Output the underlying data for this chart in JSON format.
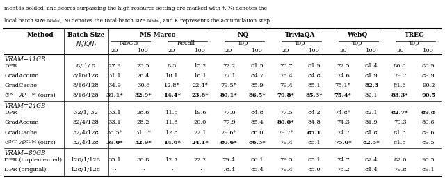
{
  "caption_text": "ment is bolded, and scores surpassing the high resource setting are marked with †. Nₗ denotes the\nlocal batch size Nₗₒₕₐₗ, Nₜ denotes the total batch size Nₜₒₜₐₗ, and K represents the accumulation step.",
  "header_row1": [
    "Method",
    "Batch Size",
    "MS Marco",
    "",
    "",
    "",
    "NQ",
    "",
    "TriviaQA",
    "",
    "WebQ",
    "",
    "TREC",
    ""
  ],
  "header_row2": [
    "",
    "N_t/K/N_l",
    "NDCG",
    "",
    "Recall",
    "",
    "Top",
    "",
    "Top",
    "",
    "Top",
    "",
    "Top",
    ""
  ],
  "header_row3": [
    "",
    "",
    "20",
    "100",
    "20",
    "100",
    "20",
    "100",
    "20",
    "100",
    "20",
    "100",
    "20",
    "100"
  ],
  "sections": [
    {
      "label": "VRAM=11GB",
      "rows": [
        {
          "method": "DPR",
          "batch": "8/ 1/ 8",
          "data": [
            "27.9",
            "23.5",
            "8.3",
            "15.2",
            "72.2",
            "81.5",
            "73.7",
            "81.9",
            "72.5",
            "81.4",
            "80.8",
            "88.9"
          ],
          "bold": [
            false,
            false,
            false,
            false,
            false,
            false,
            false,
            false,
            false,
            false,
            false,
            false
          ]
        },
        {
          "method": "GradAccum",
          "batch": "8/16/128",
          "data": [
            "31.1",
            "26.4",
            "10.1",
            "18.1",
            "77.1",
            "84.7",
            "78.4",
            "84.8",
            "74.6",
            "81.9",
            "79.7",
            "89.9"
          ],
          "bold": [
            false,
            false,
            false,
            false,
            false,
            false,
            false,
            false,
            false,
            false,
            false,
            false
          ]
        },
        {
          "method": "GradCache",
          "batch": "8/16/128",
          "data": [
            "34.9",
            "30.6",
            "12.8*",
            "22.4*",
            "79.5*",
            "85.9",
            "79.4",
            "85.1",
            "75.1*",
            "82.3",
            "81.6",
            "90.2"
          ],
          "bold": [
            false,
            false,
            false,
            false,
            false,
            false,
            false,
            false,
            false,
            true,
            false,
            false
          ]
        },
        {
          "method": "ContAccum (ours)",
          "batch": "8/16/128",
          "data": [
            "39.1*",
            "32.9*",
            "14.4*",
            "23.8*",
            "80.1*",
            "86.5*",
            "79.8*",
            "85.3*",
            "75.4*",
            "82.1",
            "83.3*",
            "90.5"
          ],
          "bold": [
            true,
            true,
            true,
            true,
            true,
            true,
            true,
            true,
            true,
            false,
            true,
            true
          ]
        }
      ]
    },
    {
      "label": "VRAM=24GB",
      "rows": [
        {
          "method": "DPR",
          "batch": "32/1/ 32",
          "data": [
            "33.1",
            "28.6",
            "11.5",
            "19.6",
            "77.0",
            "84.8",
            "77.5",
            "84.2",
            "74.8*",
            "82.1",
            "82.7*",
            "89.8"
          ],
          "bold": [
            false,
            false,
            false,
            false,
            false,
            false,
            false,
            false,
            false,
            false,
            true,
            true
          ]
        },
        {
          "method": "GradAccum",
          "batch": "32/4/128",
          "data": [
            "33.1",
            "28.2",
            "11.8",
            "20.0",
            "77.9",
            "85.4",
            "80.0*",
            "84.8",
            "74.3",
            "81.9",
            "79.3",
            "89.6"
          ],
          "bold": [
            false,
            false,
            false,
            false,
            false,
            false,
            true,
            false,
            false,
            false,
            false,
            false
          ]
        },
        {
          "method": "GradCache",
          "batch": "32/4/128",
          "data": [
            "35.5*",
            "31.0*",
            "12.8",
            "22.1",
            "79.6*",
            "86.0",
            "79.7*",
            "85.1",
            "74.7",
            "81.8",
            "81.3",
            "89.6"
          ],
          "bold": [
            false,
            false,
            false,
            false,
            false,
            false,
            false,
            true,
            false,
            false,
            false,
            false
          ]
        },
        {
          "method": "ContAccum (ours)",
          "batch": "32/4/128",
          "data": [
            "39.0*",
            "32.9*",
            "14.6*",
            "24.1*",
            "80.6*",
            "86.3*",
            "79.4",
            "85.1",
            "75.0*",
            "82.5*",
            "81.8",
            "89.5"
          ],
          "bold": [
            true,
            true,
            true,
            true,
            true,
            true,
            false,
            false,
            true,
            true,
            false,
            false
          ]
        }
      ]
    },
    {
      "label": "VRAM=80GB",
      "rows": [
        {
          "method": "DPR (implemented)",
          "batch": "128/1/128",
          "data": [
            "35.1",
            "30.8",
            "12.7",
            "22.2",
            "79.4",
            "86.1",
            "79.5",
            "85.1",
            "74.7",
            "82.4",
            "82.0",
            "90.5"
          ],
          "bold": [
            false,
            false,
            false,
            false,
            false,
            false,
            false,
            false,
            false,
            false,
            false,
            false
          ]
        },
        {
          "method": "DPR (original)",
          "batch": "128/1/128",
          "data": [
            "·",
            "·",
            "·",
            "·",
            "78.4",
            "85.4",
            "79.4",
            "85.0",
            "73.2",
            "81.4",
            "79.8",
            "89.1"
          ],
          "bold": [
            false,
            false,
            false,
            false,
            false,
            false,
            false,
            false,
            false,
            false,
            false,
            false
          ]
        }
      ]
    }
  ]
}
